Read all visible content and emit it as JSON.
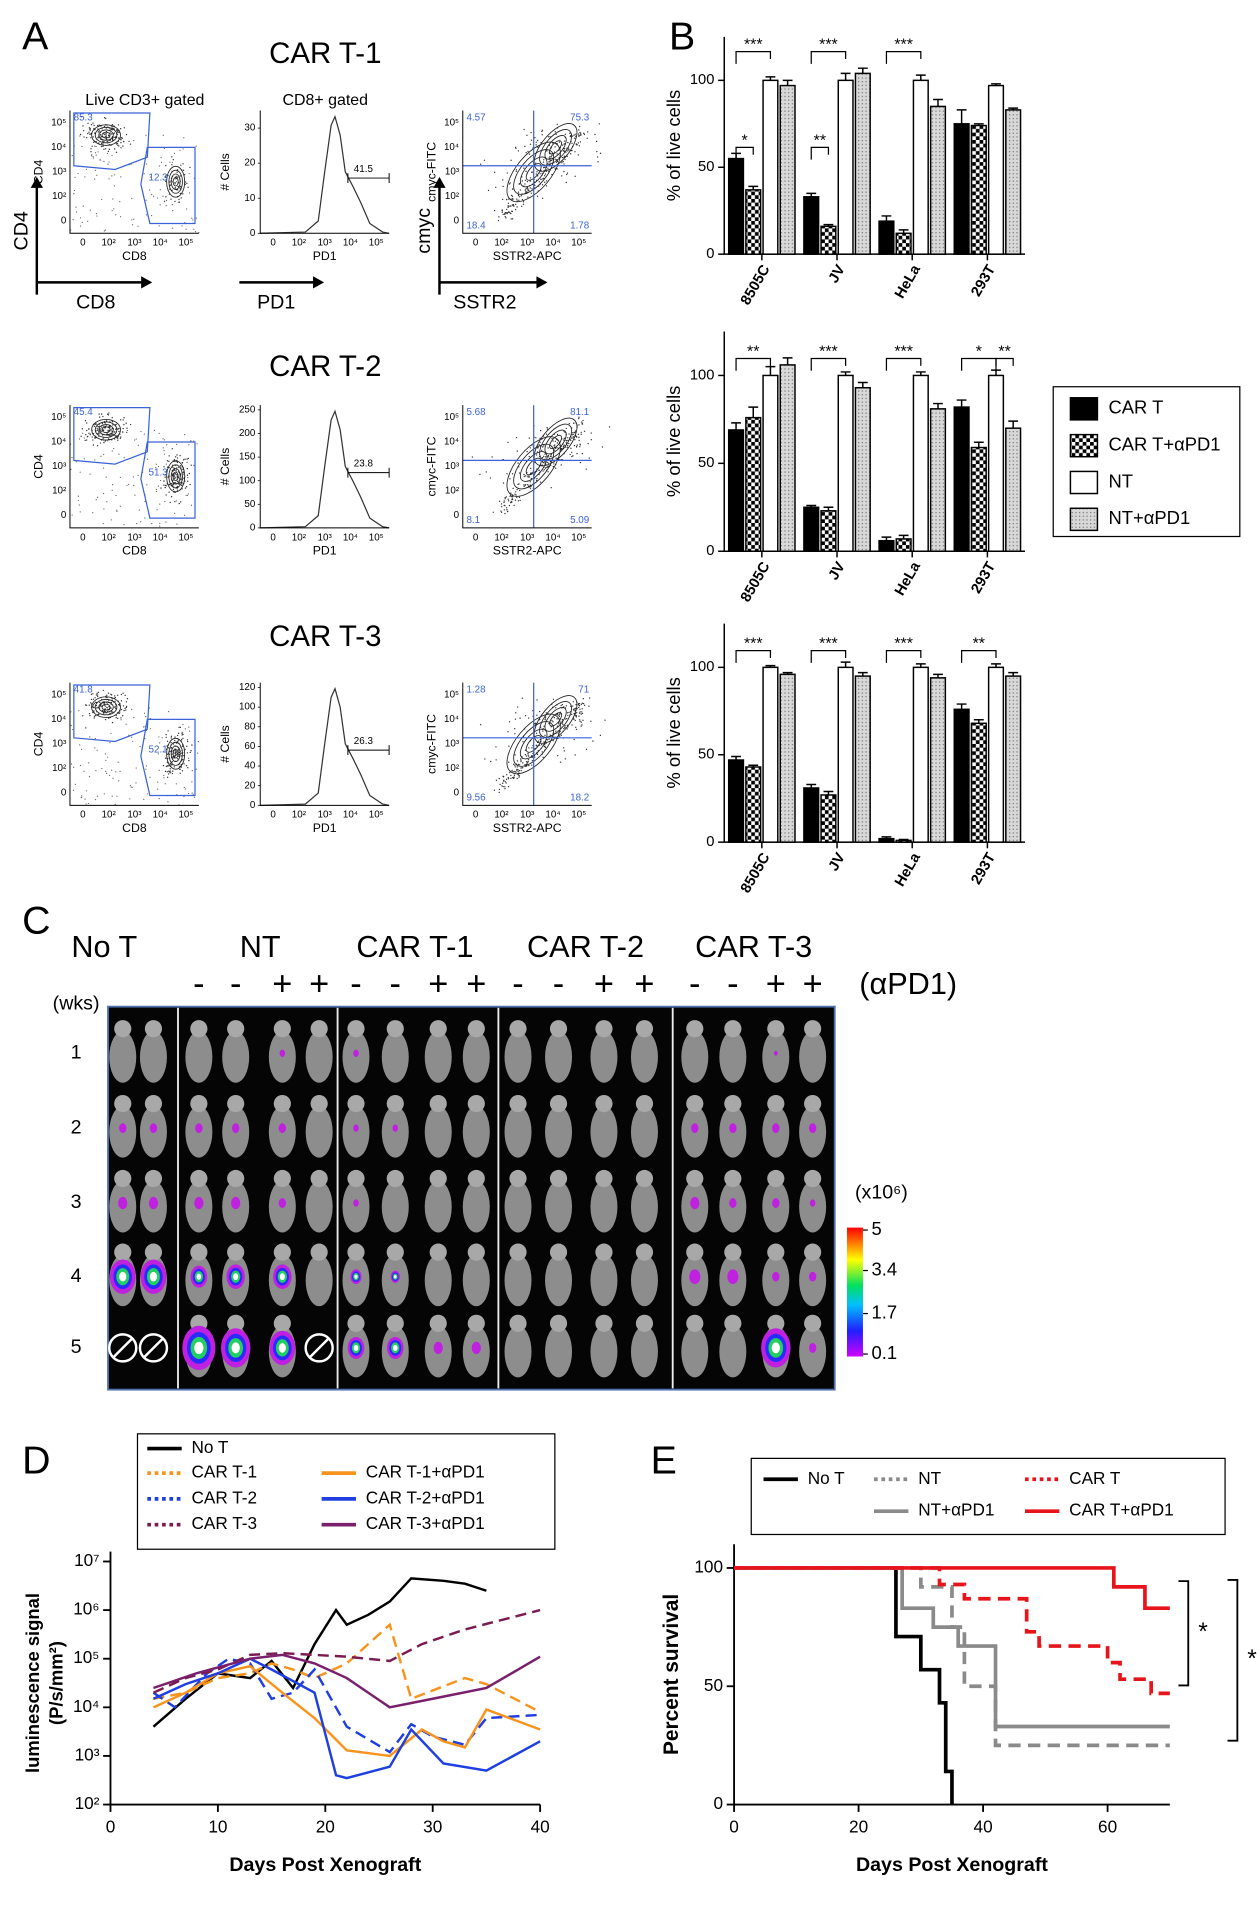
{
  "panel_labels": [
    "A",
    "B",
    "C",
    "D",
    "E"
  ],
  "flow": {
    "gate_titles": [
      "Live CD3+ gated",
      "CD8+ gated"
    ],
    "axis_labels": [
      "CD4",
      "CD8",
      "# Cells",
      "PD1",
      "cmyc-FITC",
      "SSTR2-APC"
    ],
    "arrow_labels": [
      "CD4",
      "CD8",
      "PD1",
      "cmyc",
      "SSTR2"
    ],
    "log_ticks": [
      "0",
      "10²",
      "10³",
      "10⁴",
      "10⁵"
    ],
    "rows": [
      {
        "title": "CAR T-1",
        "cd4_gate": 85.3,
        "cd8_gate": 12.3,
        "pd1_gate": 41.5,
        "hist_ylim": [
          0,
          35
        ],
        "hist_yticks": [
          0,
          10,
          20,
          30
        ],
        "quadrants": [
          4.57,
          75.3,
          18.4,
          1.78
        ]
      },
      {
        "title": "CAR T-2",
        "cd4_gate": 45.4,
        "cd8_gate": 51.3,
        "pd1_gate": 23.8,
        "hist_ylim": [
          0,
          260
        ],
        "hist_yticks": [
          0,
          50,
          100,
          150,
          200,
          250
        ],
        "quadrants": [
          5.68,
          81.1,
          8.1,
          5.09
        ]
      },
      {
        "title": "CAR T-3",
        "cd4_gate": 41.8,
        "cd8_gate": 52.1,
        "pd1_gate": 26.3,
        "hist_ylim": [
          0,
          125
        ],
        "hist_yticks": [
          0,
          20,
          40,
          60,
          80,
          100,
          120
        ],
        "quadrants": [
          1.28,
          71,
          9.56,
          18.2
        ]
      }
    ]
  },
  "imaging": {
    "groups": [
      "No T",
      "NT",
      "CAR T-1",
      "CAR T-2",
      "CAR T-3"
    ],
    "treatment_signs": [
      "-",
      "-",
      "+",
      "+"
    ],
    "treatment": "(αPD1)",
    "weeks_label": "(wks)",
    "weeks": [
      1,
      2,
      3,
      4,
      5
    ],
    "colorbar": {
      "label": "(x10⁶)",
      "ticks": [
        5,
        3.4,
        1.7,
        0.1
      ]
    }
  },
  "chart_data": [
    {
      "type": "bar",
      "y_label": "% of live cells",
      "categories": [
        "8505C",
        "JV",
        "HeLa",
        "293T"
      ],
      "ylim": [
        0,
        125
      ],
      "yticks": [
        0,
        50,
        100
      ],
      "series": [
        {
          "name": "CAR T",
          "color": "#000000",
          "pattern": "solid",
          "values": [
            55,
            33,
            19,
            75
          ],
          "errors": [
            3,
            2,
            3,
            8
          ]
        },
        {
          "name": "CAR T+αPD1",
          "color": "#000000",
          "pattern": "checker",
          "values": [
            37,
            16,
            12,
            74
          ],
          "errors": [
            2,
            1,
            2,
            1
          ]
        },
        {
          "name": "NT",
          "color": "#ffffff",
          "pattern": "solid",
          "values": [
            100,
            100,
            100,
            97
          ],
          "errors": [
            2,
            4,
            3,
            1
          ]
        },
        {
          "name": "NT+αPD1",
          "color": "#bbbbbb",
          "pattern": "dots",
          "values": [
            97,
            104,
            85,
            83
          ],
          "errors": [
            3,
            3,
            4,
            1
          ]
        }
      ],
      "annotations": [
        "*",
        "***",
        "**",
        "***",
        "***"
      ]
    },
    {
      "type": "bar",
      "y_label": "% of live cells",
      "categories": [
        "8505C",
        "JV",
        "HeLa",
        "293T"
      ],
      "ylim": [
        0,
        125
      ],
      "yticks": [
        0,
        50,
        100
      ],
      "legend": "right",
      "series": [
        {
          "name": "CAR T",
          "color": "#000000",
          "pattern": "solid",
          "values": [
            69,
            25,
            6,
            82
          ],
          "errors": [
            4,
            1,
            2,
            4
          ]
        },
        {
          "name": "CAR T+αPD1",
          "color": "#000000",
          "pattern": "checker",
          "values": [
            76,
            23,
            7,
            59
          ],
          "errors": [
            6,
            2,
            2,
            3
          ]
        },
        {
          "name": "NT",
          "color": "#ffffff",
          "pattern": "solid",
          "values": [
            100,
            100,
            100,
            100
          ],
          "errors": [
            5,
            2,
            2,
            3
          ]
        },
        {
          "name": "NT+αPD1",
          "color": "#bbbbbb",
          "pattern": "dots",
          "values": [
            106,
            93,
            81,
            70
          ],
          "errors": [
            4,
            3,
            3,
            4
          ]
        }
      ],
      "annotations": [
        "**",
        "***",
        "***",
        "*",
        "**"
      ]
    },
    {
      "type": "bar",
      "y_label": "% of live cells",
      "categories": [
        "8505C",
        "JV",
        "HeLa",
        "293T"
      ],
      "ylim": [
        0,
        125
      ],
      "yticks": [
        0,
        50,
        100
      ],
      "series": [
        {
          "name": "CAR T",
          "color": "#000000",
          "pattern": "solid",
          "values": [
            47,
            31,
            2,
            76
          ],
          "errors": [
            2,
            2,
            1,
            3
          ]
        },
        {
          "name": "CAR T+αPD1",
          "color": "#000000",
          "pattern": "checker",
          "values": [
            43,
            27,
            1,
            68
          ],
          "errors": [
            1,
            2,
            0.5,
            2
          ]
        },
        {
          "name": "NT",
          "color": "#ffffff",
          "pattern": "solid",
          "values": [
            100,
            100,
            100,
            100
          ],
          "errors": [
            1,
            3,
            2,
            2
          ]
        },
        {
          "name": "NT+αPD1",
          "color": "#bbbbbb",
          "pattern": "dots",
          "values": [
            96,
            95,
            94,
            95
          ],
          "errors": [
            1,
            2,
            2,
            2
          ]
        }
      ],
      "annotations": [
        "***",
        "***",
        "***",
        "**"
      ]
    },
    {
      "type": "line",
      "x_label": "Days Post Xenograft",
      "y_label": [
        "luminescence signal",
        "(P/s/mm²)"
      ],
      "ylog": true,
      "legend": "top",
      "xlim": [
        0,
        40
      ],
      "xticks": [
        0,
        10,
        20,
        30,
        40
      ],
      "ylim": [
        100,
        10000000
      ],
      "yticks": [
        {
          "value": 100,
          "label": "10²"
        },
        {
          "value": 1000,
          "label": "10³"
        },
        {
          "value": 10000,
          "label": "10⁴"
        },
        {
          "value": 100000,
          "label": "10⁵"
        },
        {
          "value": 1000000,
          "label": "10⁶"
        },
        {
          "value": 10000000,
          "label": "10⁷"
        }
      ],
      "series": [
        {
          "name": "No T",
          "color": "#000000",
          "dash": false,
          "x": [
            4,
            7,
            10,
            13,
            15,
            17,
            19,
            21,
            22,
            24,
            26,
            28,
            31,
            33,
            35
          ],
          "values": [
            4000,
            15000,
            50000,
            40000,
            90000,
            25000,
            200000,
            1000000,
            500000,
            800000,
            1500000,
            4500000,
            4000000,
            3500000,
            2500000
          ]
        },
        {
          "name": "CAR T-1",
          "color": "#f7941d",
          "dash": true,
          "x": [
            4,
            7,
            10,
            13,
            15,
            17,
            19,
            22,
            24,
            26,
            28,
            33,
            35,
            40
          ],
          "values": [
            15000,
            20000,
            40000,
            50000,
            80000,
            60000,
            40000,
            80000,
            200000,
            500000,
            15000,
            40000,
            30000,
            8000
          ]
        },
        {
          "name": "CAR T-2",
          "color": "#1f3fe0",
          "dash": true,
          "x": [
            4,
            6,
            9,
            11,
            13,
            15,
            17,
            19,
            22,
            26,
            28,
            30,
            33,
            35,
            40
          ],
          "values": [
            20000,
            10000,
            50000,
            100000,
            80000,
            15000,
            20000,
            60000,
            4000,
            1200,
            4500,
            2500,
            1700,
            6000,
            7000
          ]
        },
        {
          "name": "CAR T-3",
          "color": "#7b1b52",
          "dash": true,
          "x": [
            4,
            7,
            10,
            13,
            16,
            19,
            22,
            26,
            29,
            33,
            40
          ],
          "values": [
            20000,
            40000,
            60000,
            120000,
            130000,
            120000,
            110000,
            90000,
            200000,
            400000,
            1000000
          ]
        },
        {
          "name": "CAR T-1+αPD1",
          "color": "#f7941d",
          "dash": false,
          "x": [
            4,
            7,
            10,
            13,
            16,
            19,
            22,
            26,
            29,
            31,
            33,
            35,
            40
          ],
          "values": [
            10000,
            20000,
            50000,
            70000,
            20000,
            6000,
            1300,
            1000,
            3500,
            2000,
            1500,
            9000,
            3500
          ]
        },
        {
          "name": "CAR T-2+αPD1",
          "color": "#1f3fe0",
          "dash": false,
          "x": [
            4,
            7,
            10,
            13,
            15,
            19,
            21,
            22,
            26,
            28,
            31,
            35,
            40
          ],
          "values": [
            15000,
            30000,
            50000,
            100000,
            60000,
            20000,
            400,
            350,
            600,
            3500,
            700,
            500,
            2000
          ]
        },
        {
          "name": "CAR T-3+αPD1",
          "color": "#7a1f6b",
          "dash": false,
          "x": [
            4,
            8,
            13,
            16,
            19,
            22,
            26,
            30,
            35,
            40
          ],
          "values": [
            25000,
            50000,
            100000,
            120000,
            80000,
            40000,
            10000,
            15000,
            25000,
            110000
          ]
        }
      ]
    },
    {
      "type": "step",
      "x_label": "Days Post Xenograft",
      "y_label": "Percent survival",
      "legend": "top",
      "xlim": [
        0,
        70
      ],
      "xticks": [
        0,
        20,
        40,
        60
      ],
      "ylim": [
        0,
        110
      ],
      "yticks": [
        0,
        50,
        100
      ],
      "series": [
        {
          "name": "No T",
          "color": "#000000",
          "dash": false,
          "x": [
            0,
            26,
            30,
            33,
            34,
            35
          ],
          "values": [
            100,
            71,
            57,
            43,
            14,
            0
          ]
        },
        {
          "name": "NT",
          "color": "#8a8a8a",
          "dash": true,
          "x": [
            0,
            30,
            35,
            37,
            42,
            70
          ],
          "values": [
            100,
            92,
            75,
            50,
            25,
            25
          ]
        },
        {
          "name": "NT+αPD1",
          "color": "#8a8a8a",
          "dash": false,
          "x": [
            0,
            27,
            32,
            36,
            42,
            70
          ],
          "values": [
            100,
            83,
            75,
            67,
            33,
            33
          ]
        },
        {
          "name": "CAR T",
          "color": "#e8141c",
          "dash": true,
          "x": [
            0,
            33,
            37,
            47,
            49,
            60,
            62,
            67,
            70
          ],
          "values": [
            100,
            93,
            87,
            73,
            67,
            60,
            53,
            47,
            47
          ]
        },
        {
          "name": "CAR T+αPD1",
          "color": "#e8141c",
          "dash": false,
          "x": [
            0,
            61,
            66,
            70
          ],
          "values": [
            100,
            92,
            83,
            83
          ]
        }
      ],
      "annotations": [
        "*",
        "*"
      ]
    }
  ]
}
